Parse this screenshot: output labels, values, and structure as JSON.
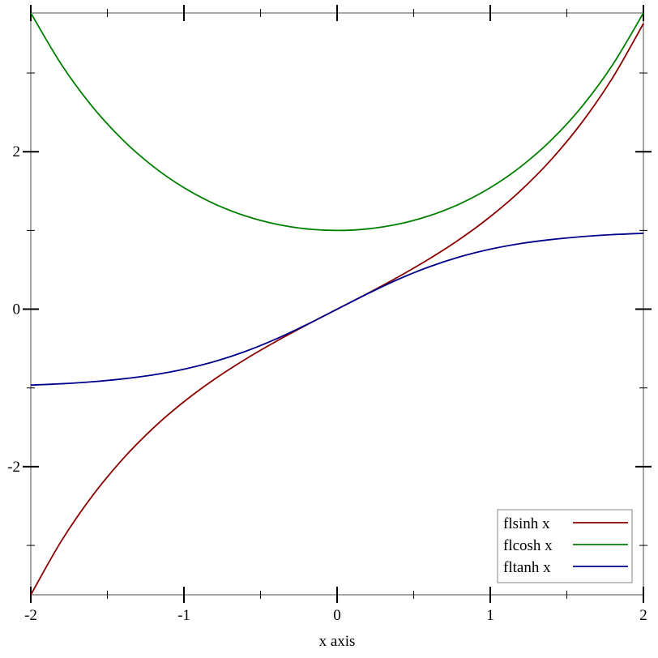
{
  "chart_data": {
    "type": "line",
    "title": "",
    "xlabel": "x axis",
    "ylabel": "",
    "xlim": [
      -2,
      2
    ],
    "ylim": [
      -3.627,
      3.762
    ],
    "x_ticks": [
      -2,
      -1,
      0,
      1,
      2
    ],
    "x_tick_labels": [
      "-2",
      "-1",
      "0",
      "1",
      "2"
    ],
    "x_minor_ticks": [
      -1.5,
      -0.5,
      0.5,
      1.5
    ],
    "y_ticks": [
      -2,
      0,
      2
    ],
    "y_tick_labels": [
      "-2",
      "0",
      "2"
    ],
    "y_minor_ticks": [
      -3,
      -1,
      1,
      3
    ],
    "grid": false,
    "legend_position": "bottom-right",
    "x": [
      -2,
      -1.8,
      -1.6,
      -1.4,
      -1.2,
      -1,
      -0.8,
      -0.6,
      -0.4,
      -0.2,
      0,
      0.2,
      0.4,
      0.6,
      0.8,
      1,
      1.2,
      1.4,
      1.6,
      1.8,
      2
    ],
    "series": [
      {
        "name": "flsinh x",
        "color": "#8b0000",
        "values": [
          -3.627,
          -2.942,
          -2.376,
          -1.904,
          -1.509,
          -1.175,
          -0.888,
          -0.637,
          -0.411,
          -0.201,
          0,
          0.201,
          0.411,
          0.637,
          0.888,
          1.175,
          1.509,
          1.904,
          2.376,
          2.942,
          3.627
        ]
      },
      {
        "name": "flcosh x",
        "color": "#008000",
        "values": [
          3.762,
          3.107,
          2.577,
          2.151,
          1.811,
          1.543,
          1.337,
          1.185,
          1.081,
          1.02,
          1,
          1.02,
          1.081,
          1.185,
          1.337,
          1.543,
          1.811,
          2.151,
          2.577,
          3.107,
          3.762
        ]
      },
      {
        "name": "fltanh x",
        "color": "#00008b",
        "values": [
          -0.964,
          -0.947,
          -0.922,
          -0.885,
          -0.834,
          -0.762,
          -0.664,
          -0.537,
          -0.38,
          -0.197,
          0,
          0.197,
          0.38,
          0.537,
          0.664,
          0.762,
          0.834,
          0.885,
          0.922,
          0.947,
          0.964
        ]
      }
    ]
  }
}
